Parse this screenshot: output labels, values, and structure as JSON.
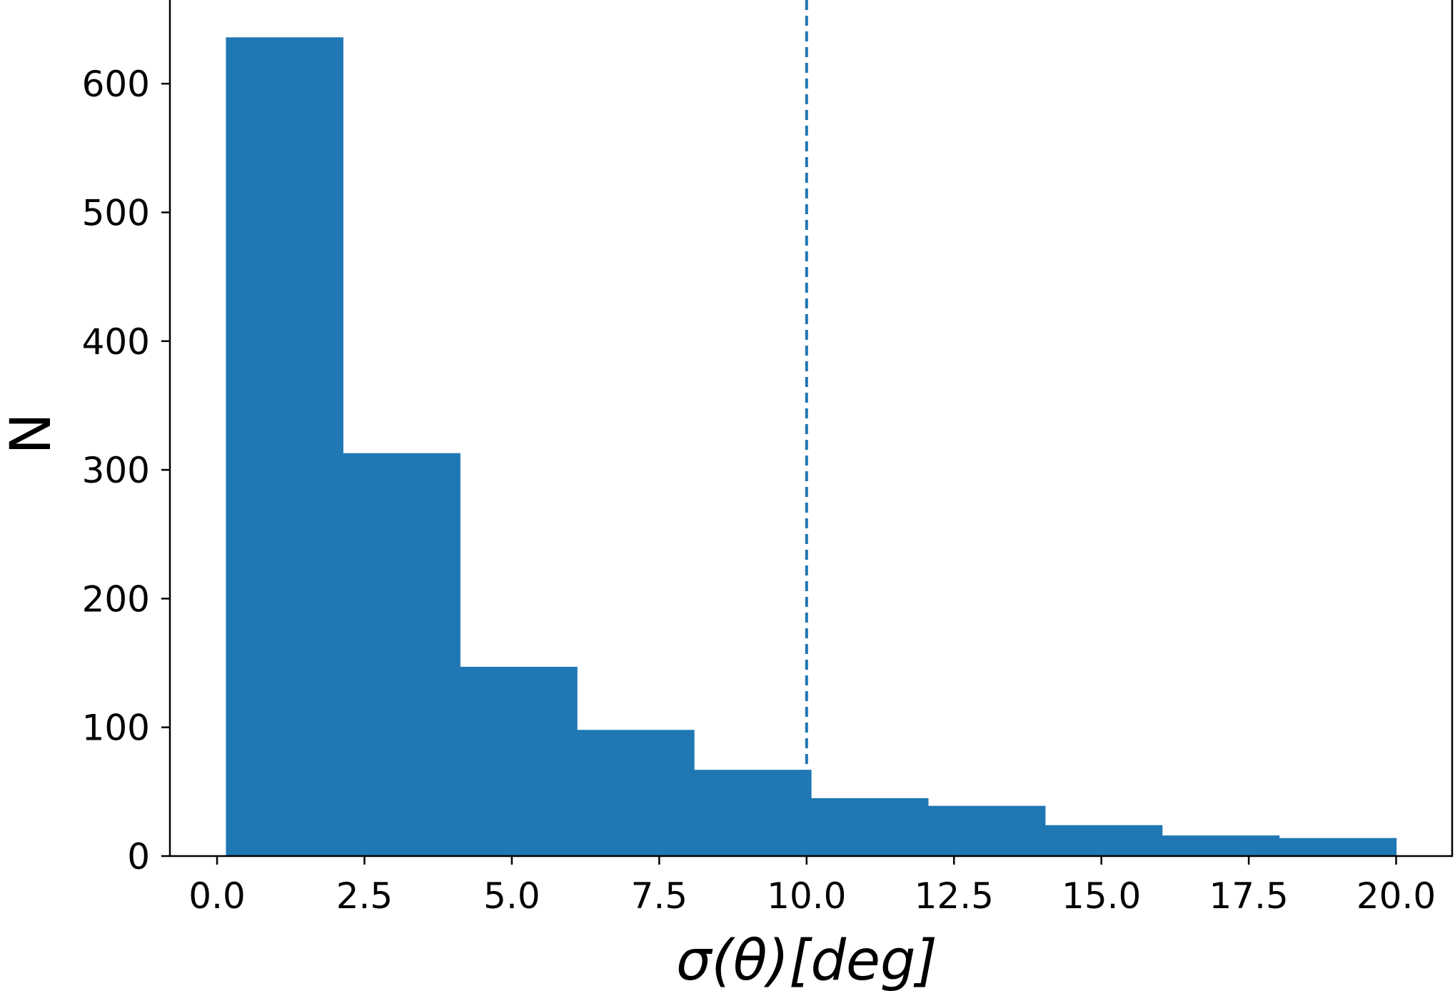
{
  "chart_data": {
    "type": "bar",
    "subtype": "histogram",
    "title": "",
    "xlabel": "σ(θ)[deg]",
    "ylabel": "N",
    "xlim": [
      -0.8,
      20.95
    ],
    "ylim": [
      0,
      665
    ],
    "xticks": [
      "0.0",
      "2.5",
      "5.0",
      "7.5",
      "10.0",
      "12.5",
      "15.0",
      "17.5",
      "20.0"
    ],
    "xtick_values": [
      0,
      2.5,
      5,
      7.5,
      10,
      12.5,
      15,
      17.5,
      20
    ],
    "yticks": [
      "0",
      "100",
      "200",
      "300",
      "400",
      "500",
      "600"
    ],
    "ytick_values": [
      0,
      100,
      200,
      300,
      400,
      500,
      600
    ],
    "bin_edges": [
      0.15,
      2.135,
      4.12,
      6.105,
      8.09,
      10.075,
      12.06,
      14.045,
      16.03,
      18.015,
      20.0
    ],
    "values": [
      636,
      313,
      147,
      98,
      67,
      45,
      39,
      24,
      16,
      14
    ],
    "bar_color": "#1f77b4",
    "grid": false,
    "vline": {
      "x": 10,
      "style": "dashed",
      "color": "#1f77b4"
    }
  }
}
